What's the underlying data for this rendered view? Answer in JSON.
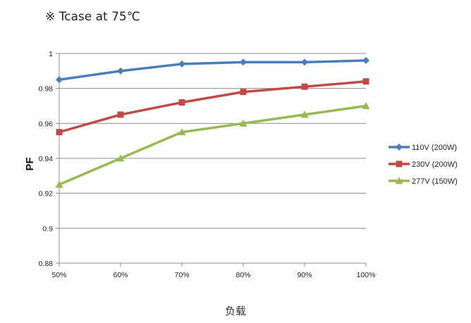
{
  "chart_data": {
    "type": "line",
    "title": "※ Tcase at 75℃",
    "xlabel": "负载",
    "ylabel": "PF",
    "categories": [
      "50%",
      "60%",
      "70%",
      "80%",
      "90%",
      "100%"
    ],
    "ylim": [
      0.88,
      1.0
    ],
    "yticks": [
      0.88,
      0.9,
      0.92,
      0.94,
      0.96,
      0.98,
      1
    ],
    "ytick_labels": [
      "0.88",
      "0.9",
      "0.92",
      "0.94",
      "0.96",
      "0.98",
      "1"
    ],
    "grid": true,
    "legend": "right",
    "series": [
      {
        "name": "110V (200W)",
        "color": "#4a7ebb",
        "marker": "diamond",
        "values": [
          0.985,
          0.99,
          0.994,
          0.995,
          0.995,
          0.996
        ]
      },
      {
        "name": "230V (200W)",
        "color": "#be4b48",
        "marker": "square",
        "values": [
          0.955,
          0.965,
          0.972,
          0.978,
          0.981,
          0.984
        ]
      },
      {
        "name": "277V (150W)",
        "color": "#98b954",
        "marker": "triangle",
        "values": [
          0.925,
          0.94,
          0.955,
          0.96,
          0.965,
          0.97
        ]
      }
    ]
  }
}
